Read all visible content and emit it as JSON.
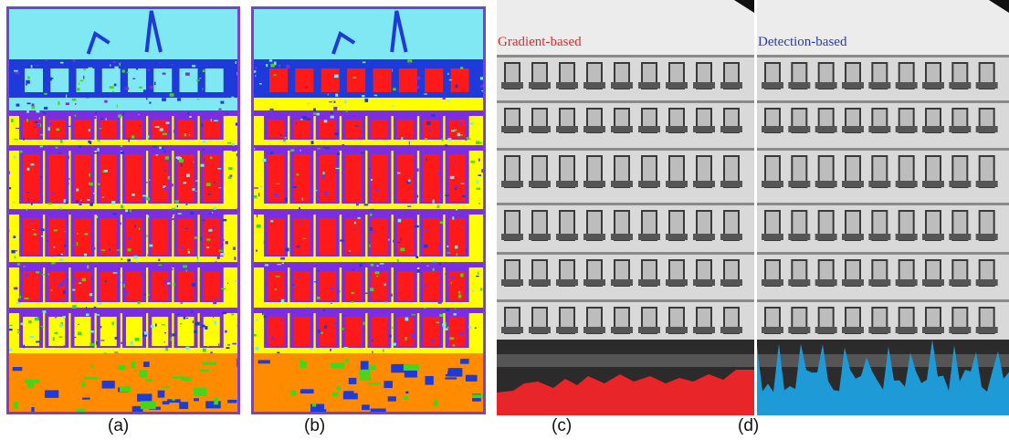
{
  "figure": {
    "panels": [
      {
        "id": "a",
        "caption": "(a)",
        "type": "segmentation-map"
      },
      {
        "id": "b",
        "caption": "(b)",
        "type": "segmentation-map-refined"
      },
      {
        "id": "c",
        "caption": "(c)",
        "type": "grayscale-photo-overlay",
        "overlay_label": "Gradient-based",
        "overlay_color": "#e8262a"
      },
      {
        "id": "d",
        "caption": "(d)",
        "type": "grayscale-photo-overlay",
        "overlay_label": "Detection-based",
        "overlay_color": "#1e9ad6"
      }
    ],
    "palette": {
      "sky": "#7fe8f2",
      "wall": "#ffff00",
      "window": "#ff1a1a",
      "balcony": "#7a2ee0",
      "detail": "#1e3ad8",
      "shop": "#ff8c00",
      "vegetation": "#44d61a",
      "border": "#7b3fd8"
    }
  }
}
